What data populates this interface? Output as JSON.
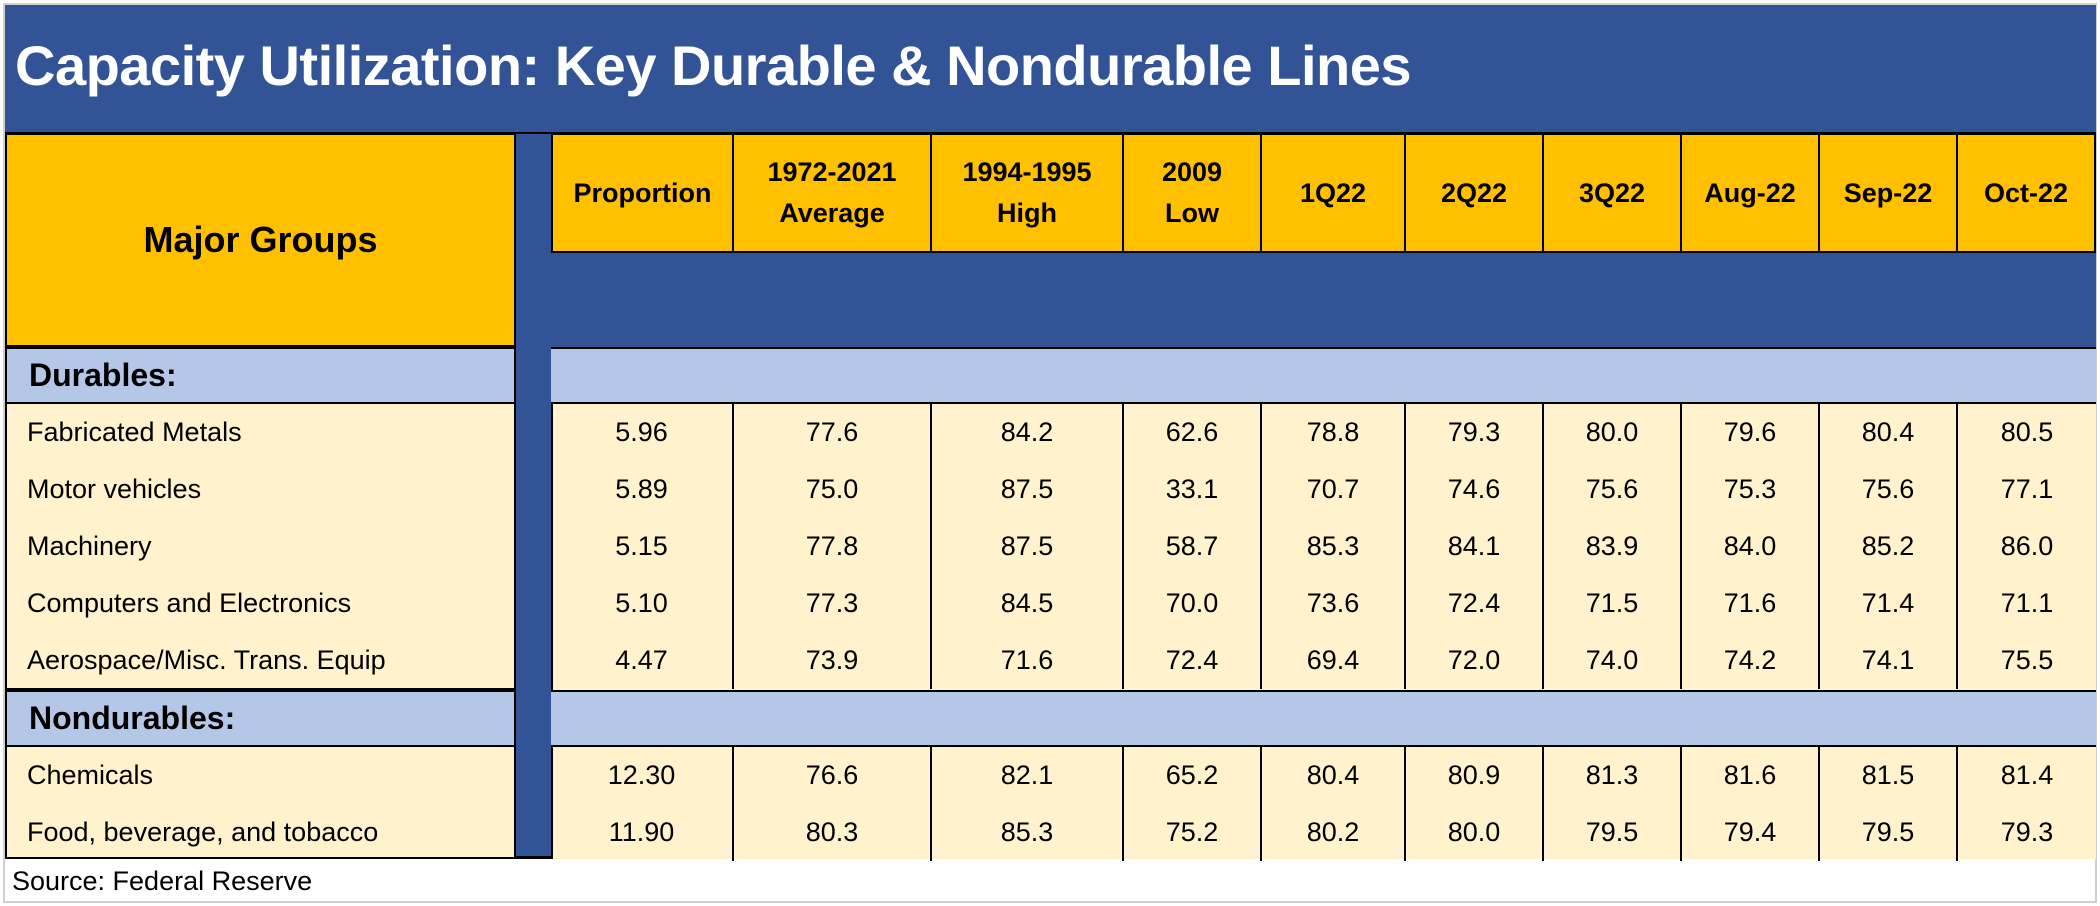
{
  "title": "Capacity Utilization: Key Durable & Nondurable Lines",
  "source": "Source: Federal Reserve",
  "colors": {
    "title_bg": "#325496",
    "header_bg": "#ffc000",
    "section_bg": "#b4c7e7",
    "row_bg": "#fff2cc"
  },
  "chart_data": {
    "type": "table",
    "row_header": "Major Groups",
    "columns": [
      [
        "Proportion"
      ],
      [
        "1972-2021",
        "Average"
      ],
      [
        "1994-1995",
        "High"
      ],
      [
        "2009",
        "Low"
      ],
      [
        "1Q22"
      ],
      [
        "2Q22"
      ],
      [
        "3Q22"
      ],
      [
        "Aug-22"
      ],
      [
        "Sep-22"
      ],
      [
        "Oct-22"
      ]
    ],
    "sections": [
      {
        "name": "Durables:",
        "rows": [
          {
            "label": "Fabricated Metals",
            "values": [
              "5.96",
              "77.6",
              "84.2",
              "62.6",
              "78.8",
              "79.3",
              "80.0",
              "79.6",
              "80.4",
              "80.5"
            ]
          },
          {
            "label": "Motor vehicles",
            "values": [
              "5.89",
              "75.0",
              "87.5",
              "33.1",
              "70.7",
              "74.6",
              "75.6",
              "75.3",
              "75.6",
              "77.1"
            ]
          },
          {
            "label": "Machinery",
            "values": [
              "5.15",
              "77.8",
              "87.5",
              "58.7",
              "85.3",
              "84.1",
              "83.9",
              "84.0",
              "85.2",
              "86.0"
            ]
          },
          {
            "label": "Computers and Electronics",
            "values": [
              "5.10",
              "77.3",
              "84.5",
              "70.0",
              "73.6",
              "72.4",
              "71.5",
              "71.6",
              "71.4",
              "71.1"
            ]
          },
          {
            "label": "Aerospace/Misc. Trans. Equip",
            "values": [
              "4.47",
              "73.9",
              "71.6",
              "72.4",
              "69.4",
              "72.0",
              "74.0",
              "74.2",
              "74.1",
              "75.5"
            ]
          }
        ]
      },
      {
        "name": "Nondurables:",
        "rows": [
          {
            "label": "Chemicals",
            "values": [
              "12.30",
              "76.6",
              "82.1",
              "65.2",
              "80.4",
              "80.9",
              "81.3",
              "81.6",
              "81.5",
              "81.4"
            ]
          },
          {
            "label": "Food, beverage,  and tobacco",
            "values": [
              "11.90",
              "80.3",
              "85.3",
              "75.2",
              "80.2",
              "80.0",
              "79.5",
              "79.4",
              "79.5",
              "79.3"
            ]
          }
        ]
      }
    ]
  }
}
